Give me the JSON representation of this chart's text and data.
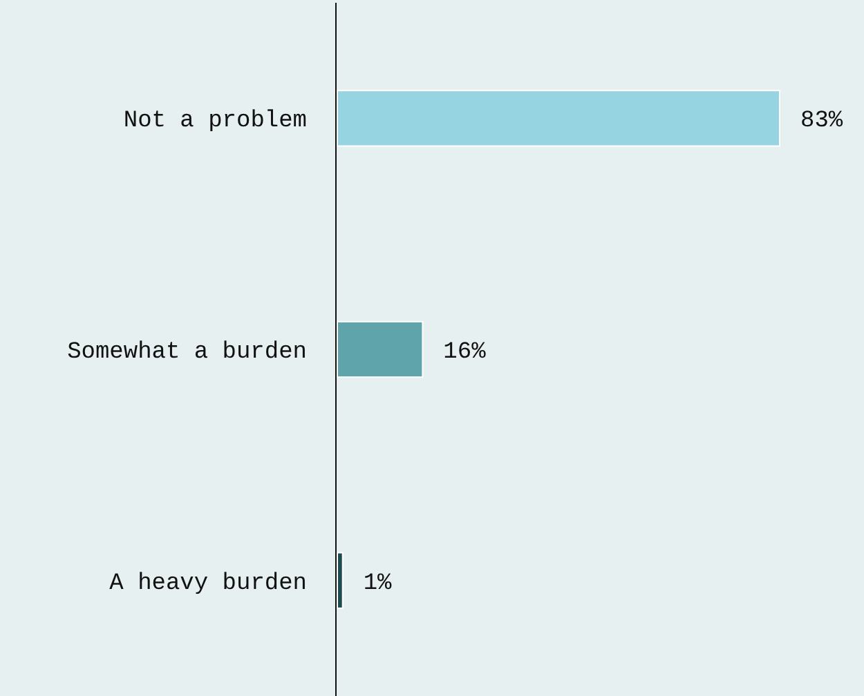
{
  "chart_data": {
    "type": "bar",
    "orientation": "horizontal",
    "categories": [
      "Not a problem",
      "Somewhat a burden",
      "A heavy burden"
    ],
    "values": [
      83,
      16,
      1
    ],
    "colors": [
      "#96d4e2",
      "#5fa4aa",
      "#1e4a52"
    ],
    "value_labels": [
      "83%",
      "16%",
      "1%"
    ]
  }
}
